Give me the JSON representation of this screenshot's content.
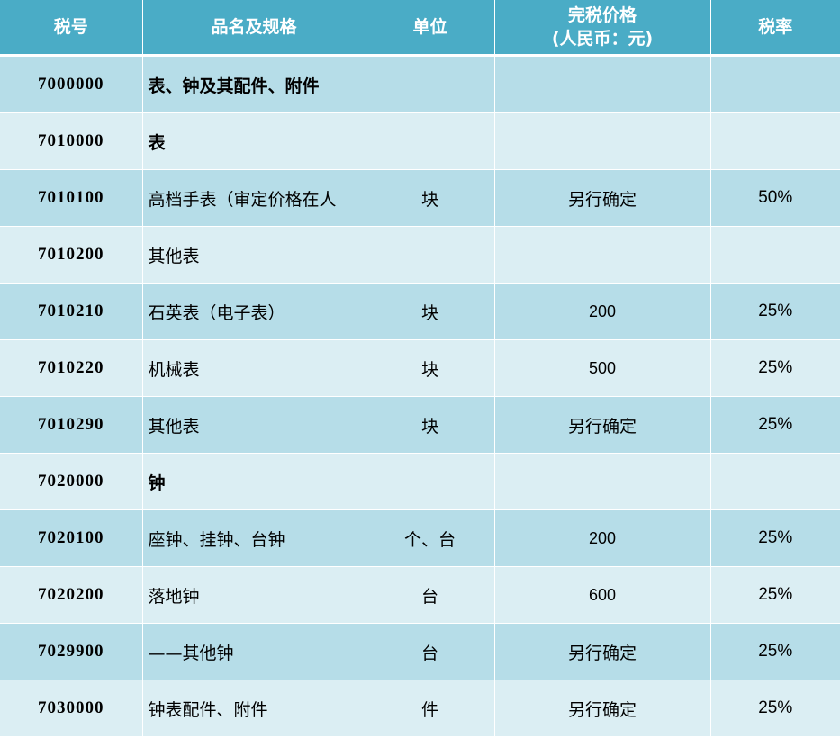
{
  "headers": {
    "code": "税号",
    "name": "品名及规格",
    "unit": "单位",
    "price_line1": "完税价格",
    "price_line2": "(人民币：元)",
    "rate": "税率"
  },
  "rows": [
    {
      "code": "7000000",
      "name": "表、钟及其配件、附件",
      "unit": "",
      "price": "",
      "rate": "",
      "bold": true
    },
    {
      "code": "7010000",
      "name": "表",
      "unit": "",
      "price": "",
      "rate": "",
      "bold": true
    },
    {
      "code": "7010100",
      "name": "高档手表（审定价格在人",
      "unit": "块",
      "price": "另行确定",
      "rate": "50%",
      "bold": false
    },
    {
      "code": "7010200",
      "name": "其他表",
      "unit": "",
      "price": "",
      "rate": "",
      "bold": false
    },
    {
      "code": "7010210",
      "name": "石英表（电子表）",
      "unit": "块",
      "price": "200",
      "rate": "25%",
      "bold": false
    },
    {
      "code": "7010220",
      "name": "机械表",
      "unit": "块",
      "price": "500",
      "rate": "25%",
      "bold": false
    },
    {
      "code": "7010290",
      "name": "其他表",
      "unit": "块",
      "price": "另行确定",
      "rate": "25%",
      "bold": false
    },
    {
      "code": "7020000",
      "name": "钟",
      "unit": "",
      "price": "",
      "rate": "",
      "bold": true
    },
    {
      "code": "7020100",
      "name": "座钟、挂钟、台钟",
      "unit": "个、台",
      "price": "200",
      "rate": "25%",
      "bold": false
    },
    {
      "code": "7020200",
      "name": "落地钟",
      "unit": "台",
      "price": "600",
      "rate": "25%",
      "bold": false
    },
    {
      "code": "7029900",
      "name": "——其他钟",
      "unit": "台",
      "price": "另行确定",
      "rate": "25%",
      "bold": false
    },
    {
      "code": "7030000",
      "name": "钟表配件、附件",
      "unit": "件",
      "price": "另行确定",
      "rate": "25%",
      "bold": false
    }
  ],
  "colors": {
    "header_bg": "#4aacc6",
    "row_dark": "#b6dde8",
    "row_light": "#dbeef3"
  }
}
